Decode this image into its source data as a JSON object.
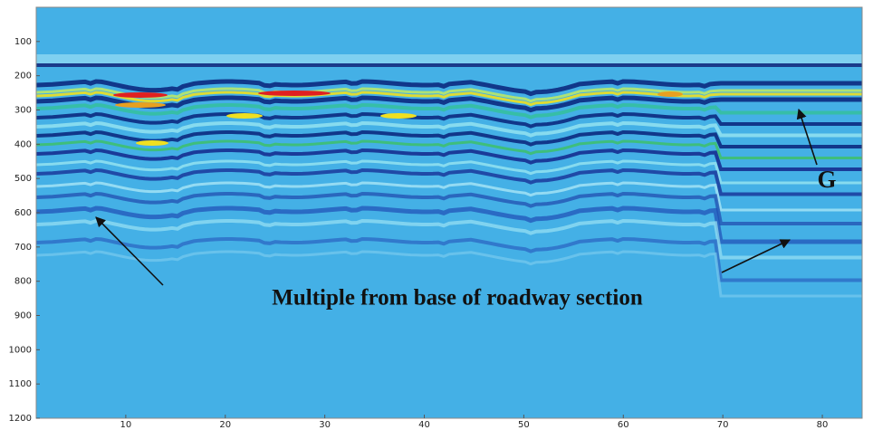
{
  "chart_data": {
    "type": "image",
    "xlim": [
      1,
      84
    ],
    "xticks": [
      10,
      20,
      30,
      40,
      50,
      60,
      70,
      80
    ],
    "ylim": [
      1200,
      0
    ],
    "yticks": [
      100,
      200,
      300,
      400,
      500,
      600,
      700,
      800,
      900,
      1000,
      1100,
      1200
    ],
    "background_color": "#44b0e6",
    "annotations": [
      {
        "text": "Multiple from base of roadway section"
      },
      {
        "text": "G"
      }
    ]
  }
}
